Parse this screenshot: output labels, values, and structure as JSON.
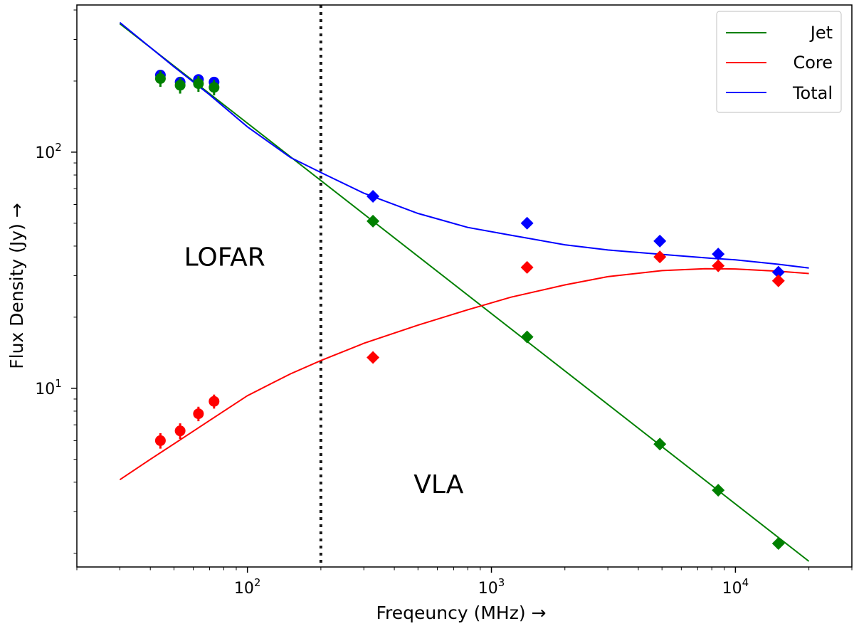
{
  "chart_data": {
    "type": "scatter",
    "title": "",
    "xlabel": "Freqeuncy (MHz)  →",
    "ylabel": "Flux Density (Jy)  →",
    "xscale": "log",
    "yscale": "log",
    "xlim": [
      20,
      30000
    ],
    "ylim": [
      1.75,
      420
    ],
    "xticks": [
      {
        "value": 100,
        "label_base": "10",
        "label_exp": "2"
      },
      {
        "value": 1000,
        "label_base": "10",
        "label_exp": "3"
      },
      {
        "value": 10000,
        "label_base": "10",
        "label_exp": "4"
      }
    ],
    "yticks": [
      {
        "value": 10,
        "label_base": "10",
        "label_exp": "1"
      },
      {
        "value": 100,
        "label_base": "10",
        "label_exp": "2"
      }
    ],
    "grid": false,
    "legend_position": "top-right",
    "divider": {
      "x": 200,
      "style": "dotted"
    },
    "region_labels": [
      {
        "text": "LOFAR",
        "x": 55,
        "y": 33
      },
      {
        "text": "VLA",
        "x": 480,
        "y": 3.6
      }
    ],
    "series": [
      {
        "name": "Jet",
        "color": "#008000",
        "model": [
          [
            30,
            350
          ],
          [
            20000,
            1.85
          ]
        ],
        "lofar_points": [
          [
            44,
            205,
            16
          ],
          [
            53,
            192,
            15
          ],
          [
            63,
            195,
            15
          ],
          [
            73,
            188,
            14
          ]
        ],
        "vla_points": [
          [
            327,
            51
          ],
          [
            1400,
            16.5
          ],
          [
            4900,
            5.8
          ],
          [
            8500,
            3.7
          ],
          [
            15000,
            2.2
          ]
        ]
      },
      {
        "name": "Core",
        "color": "#ff0000",
        "model": [
          [
            30,
            4.1
          ],
          [
            40,
            5.0
          ],
          [
            55,
            6.2
          ],
          [
            70,
            7.3
          ],
          [
            100,
            9.3
          ],
          [
            150,
            11.5
          ],
          [
            200,
            13.1
          ],
          [
            300,
            15.5
          ],
          [
            500,
            18.5
          ],
          [
            800,
            21.5
          ],
          [
            1200,
            24.3
          ],
          [
            2000,
            27.4
          ],
          [
            3000,
            29.7
          ],
          [
            5000,
            31.5
          ],
          [
            7500,
            32.1
          ],
          [
            10000,
            32.0
          ],
          [
            15000,
            31.3
          ],
          [
            20000,
            30.6
          ]
        ],
        "lofar_points": [
          [
            44,
            6.0,
            0.45
          ],
          [
            53,
            6.6,
            0.5
          ],
          [
            63,
            7.8,
            0.55
          ],
          [
            73,
            8.8,
            0.6
          ]
        ],
        "vla_points": [
          [
            327,
            13.5
          ],
          [
            1400,
            32.5
          ],
          [
            4900,
            36
          ],
          [
            8500,
            33
          ],
          [
            15000,
            28.5
          ]
        ]
      },
      {
        "name": "Total",
        "color": "#0000ff",
        "model": [
          [
            30,
            354
          ],
          [
            50,
            230
          ],
          [
            70,
            175
          ],
          [
            100,
            128
          ],
          [
            150,
            95
          ],
          [
            200,
            82
          ],
          [
            300,
            67
          ],
          [
            500,
            55
          ],
          [
            800,
            48
          ],
          [
            1200,
            44.5
          ],
          [
            2000,
            40.5
          ],
          [
            3000,
            38.5
          ],
          [
            5000,
            36.9
          ],
          [
            8000,
            35.5
          ],
          [
            10000,
            35.0
          ],
          [
            15000,
            33.5
          ],
          [
            20000,
            32.3
          ]
        ],
        "lofar_points": [
          [
            44,
            212,
            10
          ],
          [
            53,
            198,
            10
          ],
          [
            63,
            203,
            10
          ],
          [
            73,
            198,
            10
          ]
        ],
        "vla_points": [
          [
            327,
            65
          ],
          [
            1400,
            50
          ],
          [
            4900,
            42
          ],
          [
            8500,
            37
          ],
          [
            15000,
            31
          ]
        ]
      }
    ]
  }
}
